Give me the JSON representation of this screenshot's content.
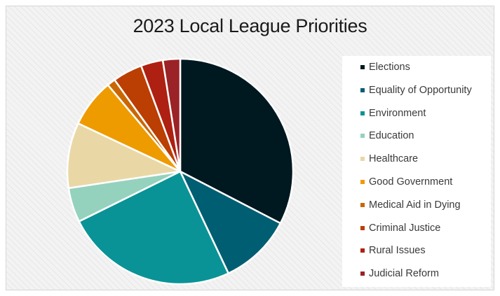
{
  "chart_data": {
    "type": "pie",
    "title": "2023 Local League Priorities",
    "legend_position": "right",
    "start_angle_deg": 0,
    "direction": "clockwise",
    "slices": [
      {
        "label": "Elections",
        "value": 33.0,
        "color": "#001820"
      },
      {
        "label": "Equality of Opportunity",
        "value": 10.5,
        "color": "#005e73"
      },
      {
        "label": "Environment",
        "value": 25.0,
        "color": "#0a9396"
      },
      {
        "label": "Education",
        "value": 5.0,
        "color": "#94d2bd"
      },
      {
        "label": "Healthcare",
        "value": 9.5,
        "color": "#e9d8a6"
      },
      {
        "label": "Good Government",
        "value": 7.0,
        "color": "#ee9b00"
      },
      {
        "label": "Medical Aid in Dying",
        "value": 1.2,
        "color": "#ca6702"
      },
      {
        "label": "Criminal Justice",
        "value": 4.3,
        "color": "#bb3e03"
      },
      {
        "label": "Rural Issues",
        "value": 3.2,
        "color": "#ae2012"
      },
      {
        "label": "Judicial Reform",
        "value": 2.5,
        "color": "#9b2226"
      }
    ]
  }
}
